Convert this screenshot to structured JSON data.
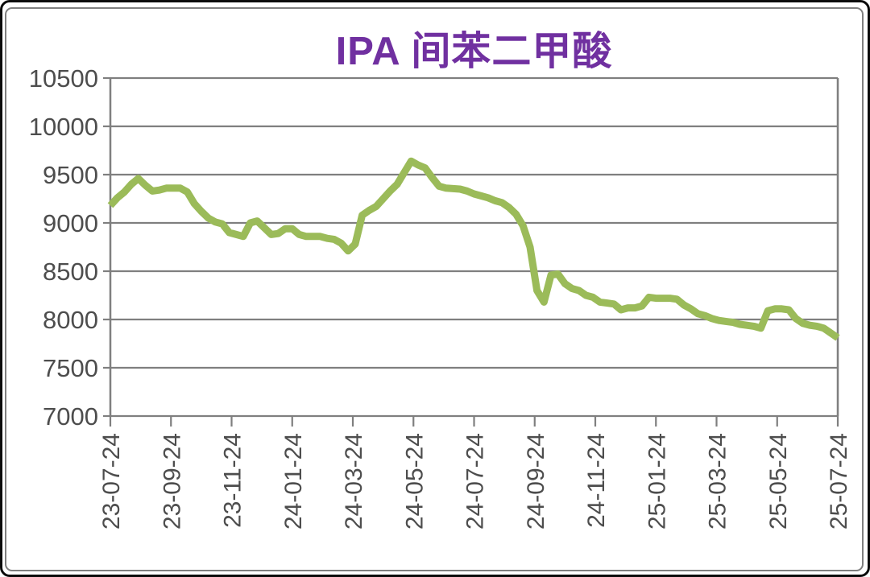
{
  "styles": {
    "title_color": "#7030A0",
    "line_color": "#9BBB59",
    "grid_color": "#7f7f7f",
    "label_color": "#4d4d4d",
    "outer_border_color": "#0b0b0b",
    "chart_border_color": "#7f7f7f",
    "background": "#ffffff"
  },
  "chart_data": {
    "type": "line",
    "title": "IPA 间苯二甲酸",
    "xlabel": "",
    "ylabel": "",
    "ylim": [
      7000,
      10500
    ],
    "y_ticks": [
      10500,
      10000,
      9500,
      9000,
      8500,
      8000,
      7500,
      7000
    ],
    "x_tick_labels": [
      "23-07-24",
      "23-09-24",
      "23-11-24",
      "24-01-24",
      "24-03-24",
      "24-05-24",
      "24-07-24",
      "24-09-24",
      "24-11-24",
      "25-01-24",
      "25-03-24",
      "25-05-24",
      "25-07-24"
    ],
    "x_range": "weekly prices from 23-07-24 to 25-07-24",
    "grid": true,
    "legend": false,
    "line_color": "#9BBB59",
    "values": [
      9180,
      9260,
      9320,
      9400,
      9460,
      9390,
      9330,
      9340,
      9360,
      9360,
      9360,
      9320,
      9200,
      9120,
      9050,
      9010,
      8990,
      8900,
      8880,
      8860,
      9000,
      9020,
      8950,
      8880,
      8890,
      8940,
      8940,
      8880,
      8860,
      8860,
      8860,
      8840,
      8830,
      8790,
      8710,
      8780,
      9080,
      9130,
      9170,
      9250,
      9330,
      9400,
      9520,
      9640,
      9600,
      9570,
      9470,
      9380,
      9360,
      9355,
      9350,
      9330,
      9300,
      9280,
      9260,
      9230,
      9210,
      9160,
      9090,
      8970,
      8750,
      8300,
      8180,
      8460,
      8470,
      8370,
      8320,
      8300,
      8250,
      8230,
      8180,
      8170,
      8160,
      8100,
      8120,
      8120,
      8140,
      8230,
      8220,
      8220,
      8220,
      8210,
      8150,
      8110,
      8060,
      8040,
      8010,
      7990,
      7980,
      7970,
      7950,
      7940,
      7930,
      7910,
      8090,
      8110,
      8110,
      8100,
      8010,
      7960,
      7940,
      7930,
      7910,
      7860,
      7810
    ]
  }
}
